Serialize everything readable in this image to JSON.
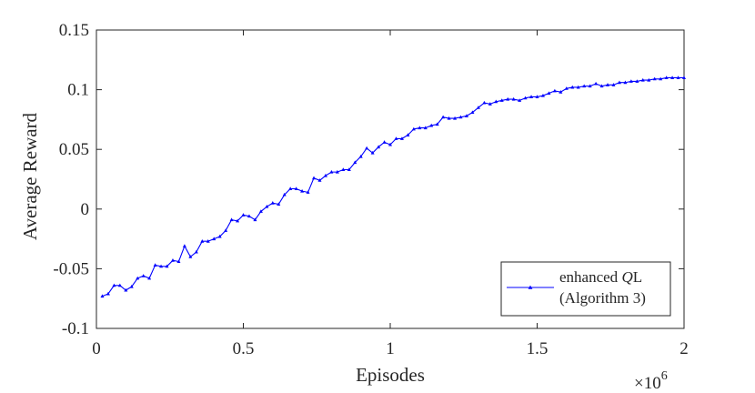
{
  "chart_data": {
    "type": "line",
    "title": "",
    "xlabel": "Episodes",
    "ylabel": "Average Reward",
    "xlim": [
      0,
      2
    ],
    "ylim": [
      -0.1,
      0.15
    ],
    "x_multiplier_label": "×10",
    "x_multiplier_exponent": "6",
    "xticks": [
      0,
      0.5,
      1,
      1.5,
      2
    ],
    "xtick_labels": [
      "0",
      "0.5",
      "1",
      "1.5",
      "2"
    ],
    "yticks": [
      -0.1,
      -0.05,
      0,
      0.05,
      0.1,
      0.15
    ],
    "ytick_labels": [
      "-0.1",
      "-0.05",
      "0",
      "0.05",
      "0.1",
      "0.15"
    ],
    "grid": false,
    "legend_position": "bottom-right",
    "series": [
      {
        "name": "enhanced QL (Algorithm 3)",
        "legend_line1_prefix": "enhanced ",
        "legend_line1_italic": "Q",
        "legend_line1_suffix": "L",
        "legend_line2": "(Algorithm 3)",
        "color": "#0000ff",
        "marker": "triangle",
        "x": [
          0.02,
          0.04,
          0.06,
          0.08,
          0.1,
          0.12,
          0.14,
          0.16,
          0.18,
          0.2,
          0.22,
          0.24,
          0.26,
          0.28,
          0.3,
          0.32,
          0.34,
          0.36,
          0.38,
          0.4,
          0.42,
          0.44,
          0.46,
          0.48,
          0.5,
          0.52,
          0.54,
          0.56,
          0.58,
          0.6,
          0.62,
          0.64,
          0.66,
          0.68,
          0.7,
          0.72,
          0.74,
          0.76,
          0.78,
          0.8,
          0.82,
          0.84,
          0.86,
          0.88,
          0.9,
          0.92,
          0.94,
          0.96,
          0.98,
          1.0,
          1.02,
          1.04,
          1.06,
          1.08,
          1.1,
          1.12,
          1.14,
          1.16,
          1.18,
          1.2,
          1.22,
          1.24,
          1.26,
          1.28,
          1.3,
          1.32,
          1.34,
          1.36,
          1.38,
          1.4,
          1.42,
          1.44,
          1.46,
          1.48,
          1.5,
          1.52,
          1.54,
          1.56,
          1.58,
          1.6,
          1.62,
          1.64,
          1.66,
          1.68,
          1.7,
          1.72,
          1.74,
          1.76,
          1.78,
          1.8,
          1.82,
          1.84,
          1.86,
          1.88,
          1.9,
          1.92,
          1.94,
          1.96,
          1.98,
          2.0
        ],
        "y": [
          -0.073,
          -0.071,
          -0.064,
          -0.064,
          -0.068,
          -0.065,
          -0.058,
          -0.056,
          -0.058,
          -0.047,
          -0.048,
          -0.048,
          -0.043,
          -0.044,
          -0.031,
          -0.04,
          -0.036,
          -0.027,
          -0.027,
          -0.025,
          -0.023,
          -0.018,
          -0.009,
          -0.01,
          -0.005,
          -0.006,
          -0.009,
          -0.002,
          0.002,
          0.005,
          0.004,
          0.012,
          0.017,
          0.017,
          0.015,
          0.014,
          0.026,
          0.024,
          0.028,
          0.031,
          0.031,
          0.033,
          0.033,
          0.039,
          0.044,
          0.051,
          0.047,
          0.052,
          0.056,
          0.054,
          0.059,
          0.059,
          0.062,
          0.067,
          0.068,
          0.068,
          0.07,
          0.071,
          0.077,
          0.076,
          0.076,
          0.077,
          0.078,
          0.081,
          0.085,
          0.089,
          0.088,
          0.09,
          0.091,
          0.092,
          0.092,
          0.091,
          0.093,
          0.094,
          0.094,
          0.095,
          0.097,
          0.099,
          0.098,
          0.101,
          0.102,
          0.102,
          0.103,
          0.103,
          0.105,
          0.103,
          0.104,
          0.104,
          0.106,
          0.106,
          0.107,
          0.107,
          0.108,
          0.108,
          0.109,
          0.109,
          0.11,
          0.11,
          0.11,
          0.11
        ]
      }
    ]
  }
}
